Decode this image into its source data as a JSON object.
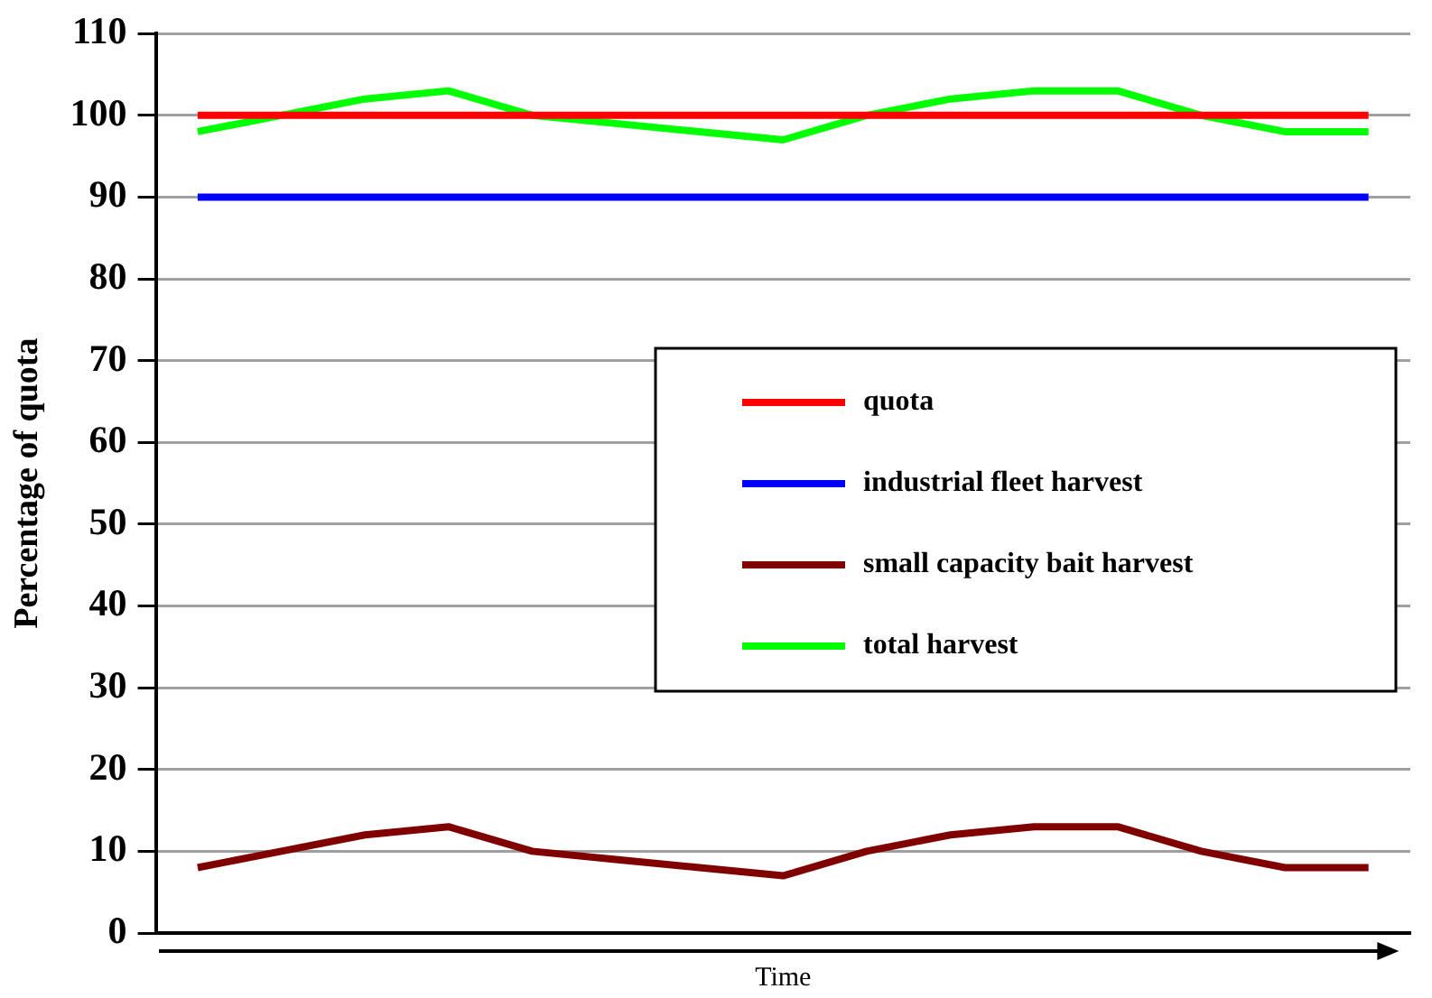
{
  "chart_data": {
    "type": "line",
    "xlabel": "Time",
    "ylabel": "Percentage of quota",
    "categories": [
      null,
      null,
      null,
      null,
      null,
      null,
      null,
      null,
      null,
      null,
      null,
      null,
      null,
      null,
      null
    ],
    "series": [
      {
        "name": "quota",
        "color": "#ff0000",
        "values": [
          100,
          100,
          100,
          100,
          100,
          100,
          100,
          100,
          100,
          100,
          100,
          100,
          100,
          100,
          100
        ]
      },
      {
        "name": "industrial fleet harvest",
        "color": "#0000ff",
        "values": [
          90,
          90,
          90,
          90,
          90,
          90,
          90,
          90,
          90,
          90,
          90,
          90,
          90,
          90,
          90
        ]
      },
      {
        "name": "small capacity bait harvest",
        "color": "#800000",
        "values": [
          8,
          10,
          12,
          13,
          10,
          9,
          8,
          7,
          10,
          12,
          13,
          13,
          10,
          8,
          8
        ]
      },
      {
        "name": "total harvest",
        "color": "#00ff00",
        "values": [
          98,
          100,
          102,
          103,
          100,
          99,
          98,
          97,
          100,
          102,
          103,
          103,
          100,
          98,
          98
        ]
      }
    ],
    "ylim": [
      0,
      110
    ],
    "yticks": [
      0,
      10,
      20,
      30,
      40,
      50,
      60,
      70,
      80,
      90,
      100,
      110
    ],
    "grid": "y",
    "legend": "right",
    "marker": "none",
    "line_style": "solid",
    "tick_labels": "y"
  }
}
